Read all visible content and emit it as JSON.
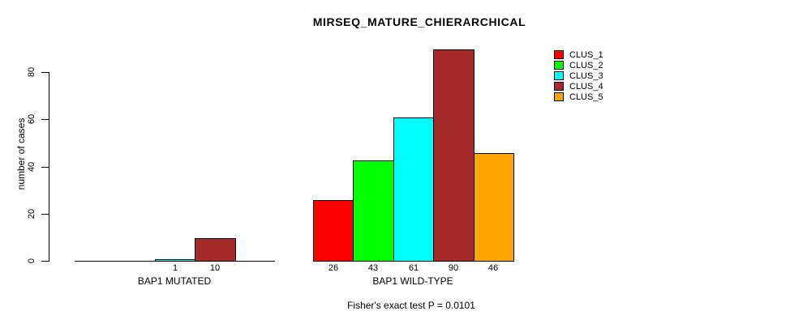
{
  "chart_data": {
    "type": "bar",
    "title": "MIRSEQ_MATURE_CHIERARCHICAL",
    "subtitle": "Fisher's exact test P = 0.0101",
    "ylabel": "number of cases",
    "xlabel": "",
    "ylim": [
      0,
      90
    ],
    "yticks": [
      0,
      20,
      40,
      60,
      80
    ],
    "grid": false,
    "legend_position": "right-outside-top",
    "legend": [
      {
        "name": "CLUS_1",
        "color": "#ff0000"
      },
      {
        "name": "CLUS_2",
        "color": "#00ff00"
      },
      {
        "name": "CLUS_3",
        "color": "#00ffff"
      },
      {
        "name": "CLUS_4",
        "color": "#a52a2a"
      },
      {
        "name": "CLUS_5",
        "color": "#ffa500"
      }
    ],
    "categories": [
      "CLUS_1",
      "CLUS_2",
      "CLUS_3",
      "CLUS_4",
      "CLUS_5"
    ],
    "groups": [
      {
        "label": "BAP1 MUTATED",
        "values": [
          0,
          0,
          1,
          10,
          0
        ]
      },
      {
        "label": "BAP1 WILD-TYPE",
        "values": [
          26,
          43,
          61,
          90,
          46
        ]
      }
    ],
    "visible_value_labels": [
      "1",
      "10",
      "26",
      "43",
      "61",
      "90",
      "46"
    ],
    "hide_zero_value_labels": true,
    "axis_color": "#000000",
    "background_color": "#ffffff"
  }
}
